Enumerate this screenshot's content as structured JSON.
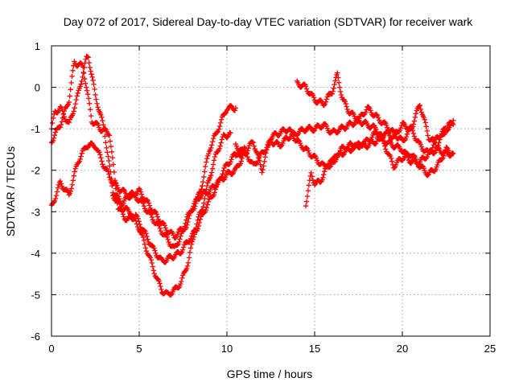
{
  "chart_data": {
    "type": "scatter",
    "title": "Day 072 of 2017, Sidereal Day-to-day VTEC variation (SDTVAR) for receiver wark",
    "xlabel": "GPS time / hours",
    "ylabel": "SDTVAR / TECUs",
    "xlim": [
      0,
      25
    ],
    "ylim": [
      -6,
      1
    ],
    "xticks": [
      0,
      5,
      10,
      15,
      20,
      25
    ],
    "yticks": [
      -6,
      -5,
      -4,
      -3,
      -2,
      -1,
      0,
      1
    ],
    "xtick_labels": [
      "0",
      "5",
      "10",
      "15",
      "20",
      "25"
    ],
    "ytick_labels": [
      "-6",
      "-5",
      "-4",
      "-3",
      "-2",
      "-1",
      "0",
      "1"
    ],
    "grid": true,
    "marker": "+",
    "series": [
      {
        "color": "#ff0000",
        "x": [
          0,
          0.2,
          0.5,
          1.0,
          1.5,
          2.0,
          2.1,
          2.5,
          3.0,
          3.5,
          4.0,
          4.5,
          5.0,
          5.5,
          6.0,
          6.5,
          7.0,
          7.5,
          8.0,
          8.5,
          9.0,
          9.5,
          10.0,
          10.5
        ],
        "y": [
          -1.0,
          -0.6,
          -0.5,
          -0.9,
          -0.2,
          0.7,
          0.75,
          -0.2,
          -1.0,
          -2.5,
          -2.8,
          -2.6,
          -2.7,
          -3.0,
          -3.3,
          -3.6,
          -3.9,
          -3.5,
          -3.0,
          -2.5,
          -1.5,
          -1.0,
          -0.5,
          -0.5
        ]
      },
      {
        "color": "#ff0000",
        "x": [
          0,
          0.5,
          1.0,
          1.5,
          2.0,
          2.5,
          3.0,
          3.5,
          4.0,
          4.5,
          5.0,
          5.5,
          6.0,
          6.5,
          7.0,
          7.5,
          8.0,
          8.5,
          9.0,
          9.5,
          10.0,
          10.5,
          11.0
        ],
        "y": [
          -2.9,
          -2.3,
          -2.6,
          -1.8,
          -1.4,
          -1.4,
          -1.9,
          -2.3,
          -2.5,
          -2.6,
          -2.5,
          -2.8,
          -3.1,
          -3.4,
          -3.6,
          -3.4,
          -2.9,
          -2.6,
          -2.5,
          -2.3,
          -2.1,
          -2.0,
          -1.6
        ]
      },
      {
        "color": "#ff0000",
        "x": [
          0,
          0.5,
          1.0,
          1.3,
          1.8,
          2.3,
          2.8,
          3.3,
          3.8,
          4.3,
          4.8,
          5.3,
          5.8,
          6.3,
          6.8,
          7.3,
          7.8,
          8.3,
          8.8,
          9.3,
          9.8,
          10.3,
          10.8
        ],
        "y": [
          -1.3,
          -0.9,
          -0.3,
          0.6,
          0.5,
          -0.8,
          -1.0,
          -1.1,
          -2.9,
          -3.2,
          -3.1,
          -3.5,
          -3.9,
          -4.2,
          -4.1,
          -4.0,
          -3.7,
          -3.4,
          -2.9,
          -2.5,
          -2.0,
          -1.7,
          -1.5
        ]
      },
      {
        "color": "#ff0000",
        "x": [
          3.5,
          4.0,
          4.5,
          5.0,
          5.5,
          6.0,
          6.3,
          6.6,
          7.0,
          7.4,
          7.8,
          8.2,
          8.6,
          9.0,
          9.4,
          9.8,
          10.2
        ],
        "y": [
          -2.6,
          -2.9,
          -3.0,
          -3.4,
          -4.0,
          -4.6,
          -4.9,
          -5.0,
          -4.9,
          -4.7,
          -4.2,
          -3.4,
          -2.9,
          -2.2,
          -1.6,
          -1.2,
          -1.1
        ]
      },
      {
        "color": "#ff0000",
        "x": [
          10.5,
          11.0,
          11.5,
          12.0,
          12.5,
          13.0,
          13.5,
          14.0,
          14.5,
          15.0,
          15.5,
          16.0,
          16.5,
          17.0,
          17.5,
          18.0,
          18.5,
          19.0,
          19.5,
          20.0,
          20.5,
          21.0,
          21.5,
          22.0,
          22.5,
          22.9
        ],
        "y": [
          -1.7,
          -1.5,
          -1.9,
          -1.6,
          -1.3,
          -1.4,
          -1.2,
          -1.1,
          -1.0,
          -1.0,
          -0.9,
          -1.1,
          -1.0,
          -0.9,
          -0.8,
          -0.9,
          -1.0,
          -1.3,
          -1.4,
          -1.5,
          -1.8,
          -1.8,
          -1.6,
          -1.5,
          -1.6,
          -1.6
        ]
      },
      {
        "color": "#ff0000",
        "x": [
          10.5,
          11.0,
          11.5,
          12.0,
          12.5,
          13.0,
          13.5,
          14.0,
          14.5,
          15.0,
          15.5,
          16.0,
          16.5,
          17.0,
          17.5,
          18.0,
          18.5,
          19.0,
          19.5,
          20.0,
          20.5,
          21.0,
          21.5,
          22.0,
          22.5,
          22.9
        ],
        "y": [
          -1.4,
          -1.6,
          -1.3,
          -2.0,
          -1.2,
          -1.1,
          -1.0,
          -1.3,
          -1.5,
          -1.7,
          -1.9,
          -1.8,
          -1.6,
          -1.5,
          -1.4,
          -1.4,
          -1.3,
          -1.1,
          -1.2,
          -0.9,
          -1.0,
          -1.4,
          -1.6,
          -1.2,
          -1.0,
          -0.9
        ]
      },
      {
        "color": "#ff0000",
        "x": [
          14.0,
          14.5,
          15.0,
          15.5,
          16.0,
          16.3,
          16.6,
          17.0,
          17.5,
          18.0,
          18.5,
          19.0,
          19.5,
          20.0,
          20.5,
          21.0,
          21.5,
          22.0,
          22.5,
          22.9
        ],
        "y": [
          0.1,
          0.0,
          -0.3,
          -0.4,
          -0.1,
          0.3,
          -0.3,
          -0.6,
          -0.8,
          -0.5,
          -0.7,
          -0.9,
          -1.1,
          -1.3,
          -1.0,
          -0.4,
          -1.2,
          -1.4,
          -1.0,
          -0.8
        ]
      },
      {
        "color": "#ff0000",
        "x": [
          14.5,
          14.8,
          15.0,
          15.3,
          15.6,
          16.0,
          16.5,
          17.0,
          17.5,
          18.0,
          18.5,
          19.0,
          19.5,
          20.0,
          20.5,
          21.0,
          21.5,
          22.0,
          22.5,
          22.8
        ],
        "y": [
          -2.8,
          -2.1,
          -2.3,
          -2.3,
          -2.0,
          -1.8,
          -1.5,
          -1.4,
          -1.4,
          -1.3,
          -1.1,
          -1.4,
          -1.9,
          -1.7,
          -1.6,
          -1.9,
          -2.1,
          -1.9,
          -1.5,
          -1.6
        ]
      }
    ]
  }
}
